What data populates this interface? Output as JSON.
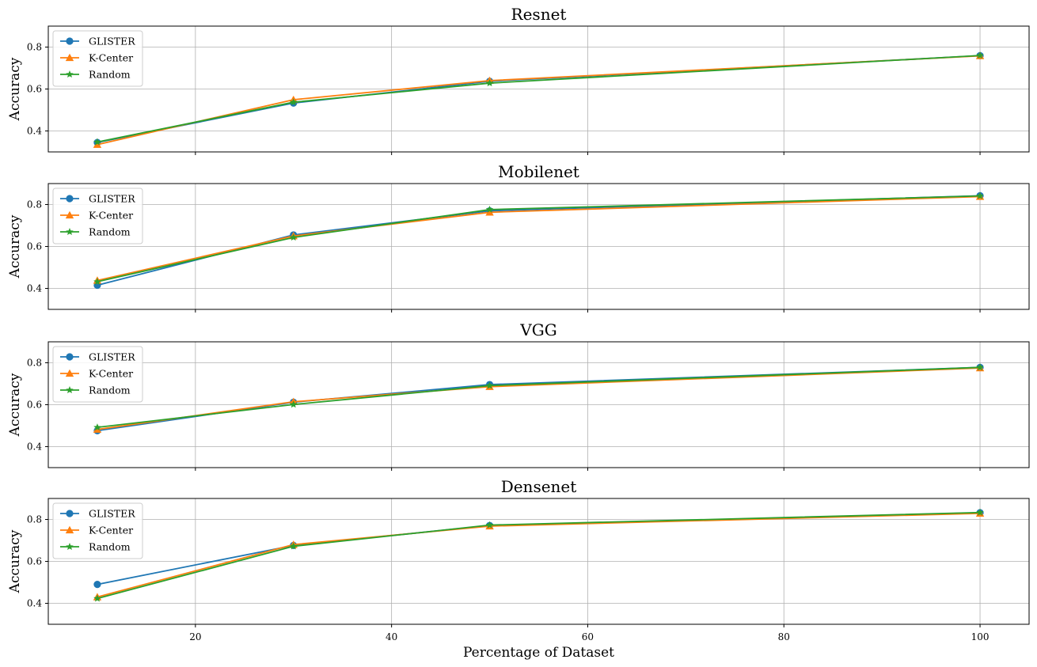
{
  "chart_data": [
    {
      "type": "line",
      "title": "Resnet",
      "ylabel": "Accuracy",
      "xlabel": "",
      "x": [
        10,
        30,
        50,
        100
      ],
      "xlim": [
        5,
        105
      ],
      "ylim": [
        0.3,
        0.9
      ],
      "xticks": [
        20,
        40,
        60,
        80,
        100
      ],
      "yticks": [
        0.4,
        0.6,
        0.8
      ],
      "xtick_labels_visible": false,
      "grid": true,
      "legend": "upper-left",
      "series": [
        {
          "name": "GLISTER",
          "values": [
            0.345,
            0.533,
            0.637,
            0.759
          ],
          "color": "#1f77b4",
          "marker": "circle"
        },
        {
          "name": "K-Center",
          "values": [
            0.335,
            0.549,
            0.64,
            0.758
          ],
          "color": "#ff7f0e",
          "marker": "triangle"
        },
        {
          "name": "Random",
          "values": [
            0.347,
            0.537,
            0.628,
            0.76
          ],
          "color": "#2ca02c",
          "marker": "star"
        }
      ]
    },
    {
      "type": "line",
      "title": "Mobilenet",
      "ylabel": "Accuracy",
      "xlabel": "",
      "x": [
        10,
        30,
        50,
        100
      ],
      "xlim": [
        5,
        105
      ],
      "ylim": [
        0.3,
        0.9
      ],
      "xticks": [
        20,
        40,
        60,
        80,
        100
      ],
      "yticks": [
        0.4,
        0.6,
        0.8
      ],
      "xtick_labels_visible": false,
      "grid": true,
      "legend": "upper-left",
      "series": [
        {
          "name": "GLISTER",
          "values": [
            0.415,
            0.655,
            0.77,
            0.842
          ],
          "color": "#1f77b4",
          "marker": "circle"
        },
        {
          "name": "K-Center",
          "values": [
            0.438,
            0.65,
            0.763,
            0.838
          ],
          "color": "#ff7f0e",
          "marker": "triangle"
        },
        {
          "name": "Random",
          "values": [
            0.432,
            0.643,
            0.776,
            0.841
          ],
          "color": "#2ca02c",
          "marker": "star"
        }
      ]
    },
    {
      "type": "line",
      "title": "VGG",
      "ylabel": "Accuracy",
      "xlabel": "",
      "x": [
        10,
        30,
        50,
        100
      ],
      "xlim": [
        5,
        105
      ],
      "ylim": [
        0.3,
        0.9
      ],
      "xticks": [
        20,
        40,
        60,
        80,
        100
      ],
      "yticks": [
        0.4,
        0.6,
        0.8
      ],
      "xtick_labels_visible": false,
      "grid": true,
      "legend": "upper-left",
      "series": [
        {
          "name": "GLISTER",
          "values": [
            0.476,
            0.612,
            0.696,
            0.778
          ],
          "color": "#1f77b4",
          "marker": "circle"
        },
        {
          "name": "K-Center",
          "values": [
            0.482,
            0.614,
            0.686,
            0.775
          ],
          "color": "#ff7f0e",
          "marker": "triangle"
        },
        {
          "name": "Random",
          "values": [
            0.492,
            0.601,
            0.691,
            0.778
          ],
          "color": "#2ca02c",
          "marker": "star"
        }
      ]
    },
    {
      "type": "line",
      "title": "Densenet",
      "ylabel": "Accuracy",
      "xlabel": "Percentage of Dataset",
      "x": [
        10,
        30,
        50,
        100
      ],
      "xlim": [
        5,
        105
      ],
      "ylim": [
        0.3,
        0.9
      ],
      "xticks": [
        20,
        40,
        60,
        80,
        100
      ],
      "yticks": [
        0.4,
        0.6,
        0.8
      ],
      "xtick_labels_visible": true,
      "grid": true,
      "legend": "upper-left",
      "series": [
        {
          "name": "GLISTER",
          "values": [
            0.49,
            0.676,
            0.771,
            0.832
          ],
          "color": "#1f77b4",
          "marker": "circle"
        },
        {
          "name": "K-Center",
          "values": [
            0.43,
            0.68,
            0.768,
            0.829
          ],
          "color": "#ff7f0e",
          "marker": "triangle"
        },
        {
          "name": "Random",
          "values": [
            0.423,
            0.672,
            0.773,
            0.833
          ],
          "color": "#2ca02c",
          "marker": "star"
        }
      ]
    }
  ]
}
